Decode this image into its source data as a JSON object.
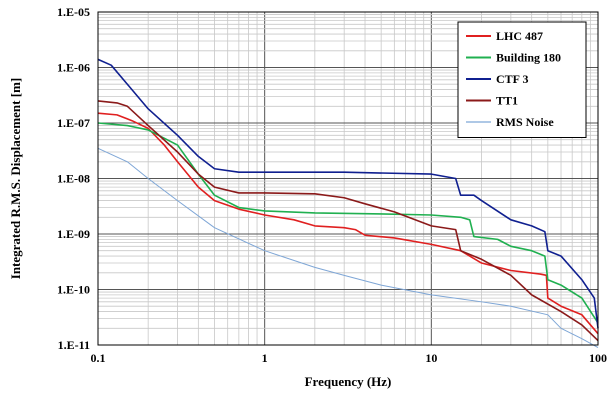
{
  "chart_data": {
    "type": "line",
    "title": "",
    "xlabel": "Frequency (Hz)",
    "ylabel": "Integrated R.M.S. Displacement [m]",
    "xscale": "log",
    "yscale": "log",
    "xlim": [
      0.1,
      100
    ],
    "ylim": [
      1e-11,
      1e-05
    ],
    "grid": true,
    "legend_position": "top-right",
    "x_ticks": [
      {
        "value": 0.1,
        "label": "0.1"
      },
      {
        "value": 1,
        "label": "1"
      },
      {
        "value": 10,
        "label": "10"
      },
      {
        "value": 100,
        "label": "100"
      }
    ],
    "y_ticks": [
      {
        "value": 1e-05,
        "label": "1.E-05"
      },
      {
        "value": 1e-06,
        "label": "1.E-06"
      },
      {
        "value": 1e-07,
        "label": "1.E-07"
      },
      {
        "value": 1e-08,
        "label": "1.E-08"
      },
      {
        "value": 1e-09,
        "label": "1.E-09"
      },
      {
        "value": 1e-10,
        "label": "1.E-10"
      },
      {
        "value": 1e-11,
        "label": "1.E-11"
      }
    ],
    "series": [
      {
        "name": "LHC 487",
        "color": "#e02020",
        "points": [
          [
            0.1,
            1.5e-07
          ],
          [
            0.13,
            1.4e-07
          ],
          [
            0.16,
            1.1e-07
          ],
          [
            0.2,
            8e-08
          ],
          [
            0.25,
            4e-08
          ],
          [
            0.3,
            2e-08
          ],
          [
            0.4,
            7e-09
          ],
          [
            0.5,
            4e-09
          ],
          [
            0.7,
            2.8e-09
          ],
          [
            1,
            2.2e-09
          ],
          [
            1.5,
            1.8e-09
          ],
          [
            2,
            1.4e-09
          ],
          [
            3,
            1.3e-09
          ],
          [
            3.5,
            1.2e-09
          ],
          [
            4,
            9.5e-10
          ],
          [
            6,
            8.5e-10
          ],
          [
            10,
            6.5e-10
          ],
          [
            15,
            5e-10
          ],
          [
            20,
            3e-10
          ],
          [
            30,
            2.2e-10
          ],
          [
            45,
            1.9e-10
          ],
          [
            49,
            1.8e-10
          ],
          [
            50,
            7e-11
          ],
          [
            60,
            5e-11
          ],
          [
            80,
            3.5e-11
          ],
          [
            100,
            1.6e-11
          ]
        ]
      },
      {
        "name": "Building 180",
        "color": "#20b050",
        "points": [
          [
            0.1,
            1e-07
          ],
          [
            0.15,
            9e-08
          ],
          [
            0.2,
            7.5e-08
          ],
          [
            0.3,
            4e-08
          ],
          [
            0.4,
            1.2e-08
          ],
          [
            0.5,
            5e-09
          ],
          [
            0.7,
            3e-09
          ],
          [
            1,
            2.6e-09
          ],
          [
            2,
            2.4e-09
          ],
          [
            5,
            2.3e-09
          ],
          [
            10,
            2.2e-09
          ],
          [
            15,
            2e-09
          ],
          [
            17,
            1.8e-09
          ],
          [
            18,
            9e-10
          ],
          [
            25,
            8e-10
          ],
          [
            30,
            6e-10
          ],
          [
            40,
            5e-10
          ],
          [
            48,
            4e-10
          ],
          [
            50,
            1.5e-10
          ],
          [
            60,
            1.2e-10
          ],
          [
            80,
            7e-11
          ],
          [
            100,
            2.5e-11
          ]
        ]
      },
      {
        "name": "CTF 3",
        "color": "#102090",
        "points": [
          [
            0.1,
            1.4e-06
          ],
          [
            0.12,
            1.1e-06
          ],
          [
            0.15,
            5e-07
          ],
          [
            0.2,
            1.8e-07
          ],
          [
            0.3,
            6e-08
          ],
          [
            0.4,
            2.5e-08
          ],
          [
            0.5,
            1.5e-08
          ],
          [
            0.7,
            1.3e-08
          ],
          [
            1,
            1.3e-08
          ],
          [
            3,
            1.3e-08
          ],
          [
            10,
            1.2e-08
          ],
          [
            14,
            1e-08
          ],
          [
            15,
            5e-09
          ],
          [
            18,
            5e-09
          ],
          [
            20,
            4e-09
          ],
          [
            30,
            1.8e-09
          ],
          [
            40,
            1.4e-09
          ],
          [
            48,
            1.1e-09
          ],
          [
            50,
            5e-10
          ],
          [
            60,
            4e-10
          ],
          [
            80,
            1.5e-10
          ],
          [
            95,
            7e-11
          ],
          [
            100,
            2e-11
          ]
        ]
      },
      {
        "name": "TT1",
        "color": "#8b1a1a",
        "points": [
          [
            0.1,
            2.5e-07
          ],
          [
            0.13,
            2.3e-07
          ],
          [
            0.15,
            2e-07
          ],
          [
            0.2,
            9e-08
          ],
          [
            0.3,
            3e-08
          ],
          [
            0.4,
            1.2e-08
          ],
          [
            0.5,
            7e-09
          ],
          [
            0.7,
            5.5e-09
          ],
          [
            1,
            5.5e-09
          ],
          [
            2,
            5.3e-09
          ],
          [
            3,
            4.5e-09
          ],
          [
            4,
            3.5e-09
          ],
          [
            6,
            2.5e-09
          ],
          [
            10,
            1.4e-09
          ],
          [
            14,
            1.2e-09
          ],
          [
            15,
            5e-10
          ],
          [
            20,
            3.5e-10
          ],
          [
            30,
            1.8e-10
          ],
          [
            40,
            8e-11
          ],
          [
            60,
            4e-11
          ],
          [
            80,
            2.3e-11
          ],
          [
            100,
            1.2e-11
          ]
        ]
      },
      {
        "name": "RMS Noise",
        "color": "#7ea6d6",
        "points": [
          [
            0.1,
            3.5e-08
          ],
          [
            0.15,
            2e-08
          ],
          [
            0.2,
            1e-08
          ],
          [
            0.3,
            4e-09
          ],
          [
            0.5,
            1.3e-09
          ],
          [
            1,
            5e-10
          ],
          [
            2,
            2.5e-10
          ],
          [
            3,
            1.8e-10
          ],
          [
            5,
            1.2e-10
          ],
          [
            10,
            8e-11
          ],
          [
            20,
            6e-11
          ],
          [
            30,
            5e-11
          ],
          [
            50,
            3.5e-11
          ],
          [
            60,
            2e-11
          ],
          [
            80,
            1.3e-11
          ],
          [
            100,
            9e-12
          ]
        ]
      }
    ]
  }
}
